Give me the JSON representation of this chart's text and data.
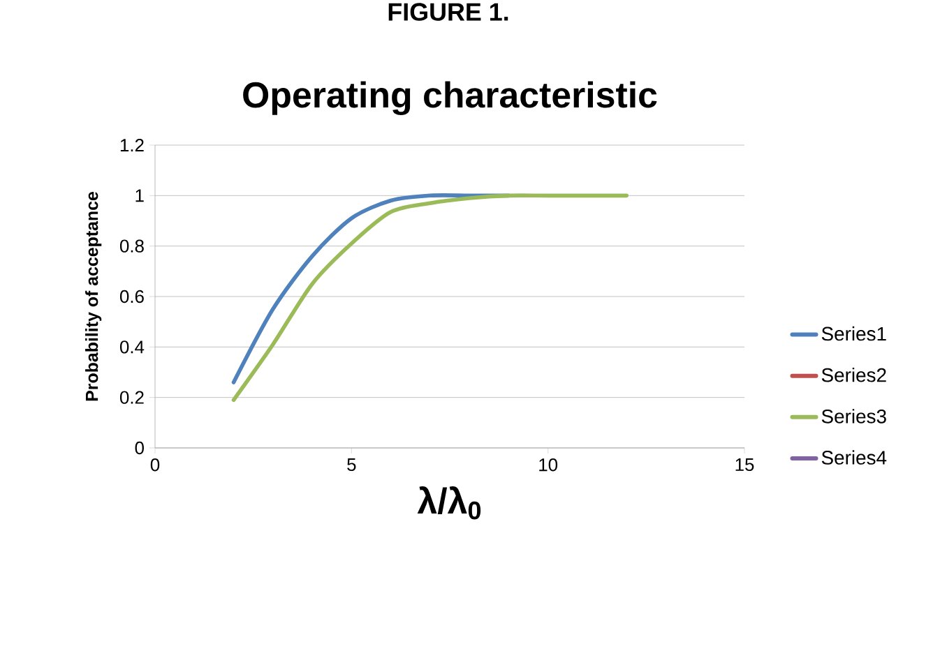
{
  "chart_data": {
    "type": "line",
    "title": "Operating characteristic",
    "xlabel": "λ/λ$_{0}$",
    "ylabel": "Probability of acceptance",
    "annotations": [
      "FIGURE 1."
    ],
    "x": [
      2,
      3,
      4,
      5,
      6,
      7,
      8,
      9,
      10,
      11,
      12
    ],
    "series": [
      {
        "name": "Series1",
        "color": "#4f81bd",
        "values": [
          0.26,
          0.55,
          0.76,
          0.91,
          0.98,
          1.0,
          1.0,
          1.0,
          null,
          null,
          null
        ]
      },
      {
        "name": "Series2",
        "color": "#c0504d",
        "values": [
          null,
          null,
          null,
          null,
          null,
          null,
          null,
          null,
          null,
          null,
          null
        ]
      },
      {
        "name": "Series3",
        "color": "#9bbb59",
        "values": [
          0.19,
          0.41,
          0.65,
          0.81,
          0.935,
          0.97,
          0.99,
          1.0,
          1.0,
          1.0,
          1.0
        ]
      },
      {
        "name": "Series4",
        "color": "#8064a2",
        "values": [
          null,
          null,
          null,
          null,
          null,
          null,
          null,
          null,
          null,
          null,
          null
        ]
      }
    ],
    "xlim": [
      0,
      15
    ],
    "xticks": [
      0,
      5,
      10,
      15
    ],
    "ylim": [
      0,
      1.2
    ],
    "yticks": [
      0,
      0.2,
      0.4,
      0.6,
      0.8,
      1,
      1.2
    ],
    "grid": "y",
    "legend": "right",
    "marker": "none",
    "line_style": "solid"
  }
}
